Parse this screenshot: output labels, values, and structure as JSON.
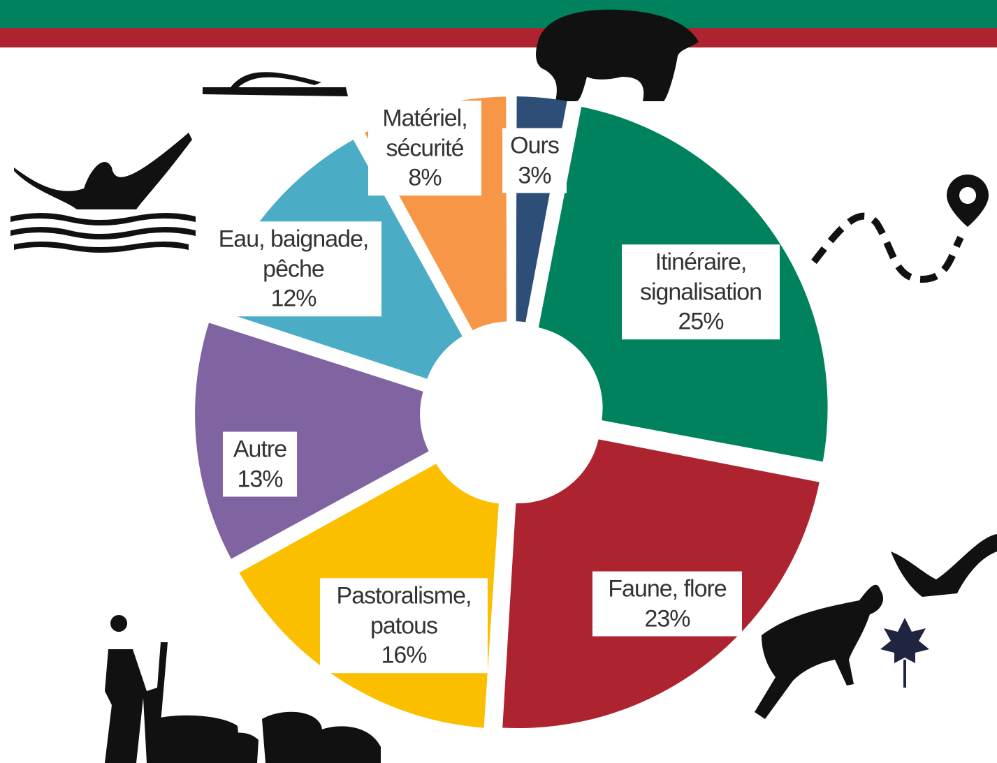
{
  "chart_data": {
    "type": "pie",
    "categories": [
      "Ours",
      "Itinéraire, signalisation",
      "Faune, flore",
      "Pastoralisme, patous",
      "Autre",
      "Eau, baignade, pêche",
      "Matériel, sécurité"
    ],
    "values": [
      3,
      25,
      23,
      16,
      13,
      12,
      8
    ],
    "value_labels": [
      "3%",
      "25%",
      "23%",
      "16%",
      "13%",
      "12%",
      "8%"
    ],
    "colors": [
      "#2d4e76",
      "#00825e",
      "#ad2430",
      "#fbbf00",
      "#8064a2",
      "#4bacc6",
      "#f79646"
    ]
  }
}
